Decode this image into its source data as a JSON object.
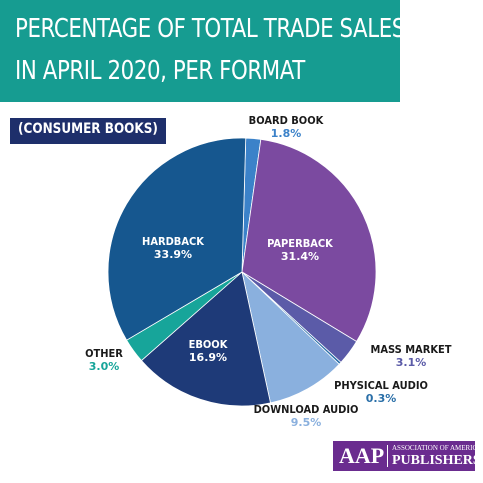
{
  "chart_data": {
    "type": "pie",
    "title_lines": [
      "PERCENTAGE OF TOTAL TRADE SALES",
      "IN APRIL 2020, PER FORMAT"
    ],
    "subtitle": "(CONSUMER BOOKS)",
    "slices": [
      {
        "name": "BOARD BOOK",
        "value": 1.8,
        "label": "1.8%",
        "color": "#3b82c9",
        "label_color": "#3b82c9"
      },
      {
        "name": "PAPERBACK",
        "value": 31.4,
        "label": "31.4%",
        "color": "#7b4aa0",
        "label_color": "#ffffff"
      },
      {
        "name": "MASS MARKET",
        "value": 3.1,
        "label": "3.1%",
        "color": "#5b5ba8",
        "label_color": "#5b5ba8"
      },
      {
        "name": "PHYSICAL AUDIO",
        "value": 0.3,
        "label": "0.3%",
        "color": "#2a6fa8",
        "label_color": "#2a6fa8"
      },
      {
        "name": "DOWNLOAD AUDIO",
        "value": 9.5,
        "label": "9.5%",
        "color": "#8ab0de",
        "label_color": "#8ab0de"
      },
      {
        "name": "EBOOK",
        "value": 16.9,
        "label": "16.9%",
        "color": "#1e3a78",
        "label_color": "#ffffff"
      },
      {
        "name": "OTHER",
        "value": 3.0,
        "label": "3.0%",
        "color": "#17a59a",
        "label_color": "#17a59a"
      },
      {
        "name": "HARDBACK",
        "value": 33.9,
        "label": "33.9%",
        "color": "#16578f",
        "label_color": "#ffffff"
      }
    ]
  },
  "colors": {
    "title_banner": "#169c91",
    "subtitle_banner": "#1e2f6b",
    "logo_bg": "#6a2c8f",
    "text_dark": "#1a1a1a"
  },
  "logo": {
    "mark": "AAP",
    "line1": "ASSOCIATION OF AMERICAN",
    "line2": "PUBLISHERS"
  }
}
